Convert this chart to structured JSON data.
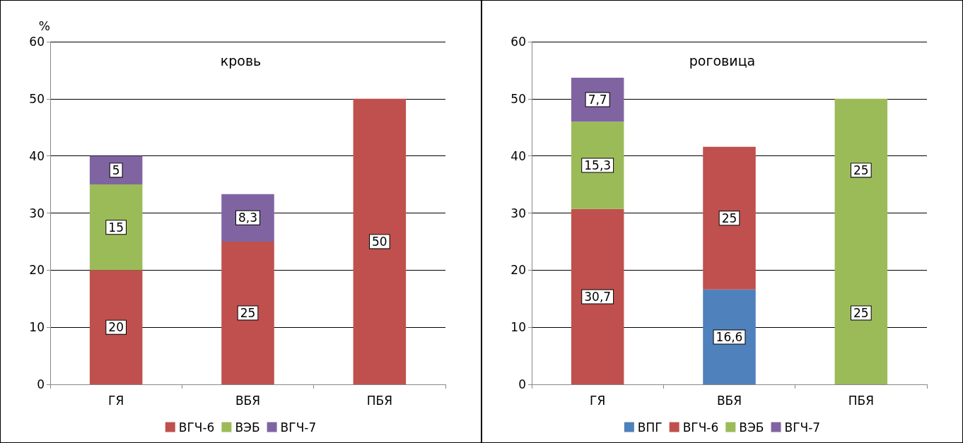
{
  "chart_data": [
    {
      "type": "bar",
      "title": "кровь",
      "ylabel": "%",
      "categories": [
        "ГЯ",
        "ВБЯ",
        "ПБЯ"
      ],
      "stacked": true,
      "ylim": [
        0,
        60
      ],
      "yticks": [
        0,
        10,
        20,
        30,
        40,
        50,
        60
      ],
      "grid": "y",
      "legend": "bottom",
      "series": [
        {
          "name": "ВГЧ-6",
          "color": "#c0504d",
          "values": [
            20,
            25,
            50
          ],
          "value_labels": [
            "20",
            "25",
            "50"
          ]
        },
        {
          "name": "ВЭБ",
          "color": "#9bbb59",
          "values": [
            15,
            null,
            null
          ],
          "value_labels": [
            "15",
            null,
            null
          ]
        },
        {
          "name": "ВГЧ-7",
          "color": "#8064a2",
          "values": [
            5,
            8.3,
            null
          ],
          "value_labels": [
            "5",
            "8,3",
            null
          ]
        }
      ]
    },
    {
      "type": "bar",
      "title": "роговица",
      "categories": [
        "ГЯ",
        "ВБЯ",
        "ПБЯ"
      ],
      "stacked": true,
      "ylim": [
        0,
        60
      ],
      "yticks": [
        0,
        10,
        20,
        30,
        40,
        50,
        60
      ],
      "grid": "y",
      "legend": "bottom",
      "series": [
        {
          "name": "ВПГ",
          "color": "#4f81bd",
          "values": [
            null,
            16.6,
            null
          ],
          "value_labels": [
            null,
            "16,6",
            null
          ]
        },
        {
          "name": "ВГЧ-6",
          "color": "#c0504d",
          "values": [
            30.7,
            25,
            null
          ],
          "value_labels": [
            "30,7",
            "25",
            null
          ]
        },
        {
          "name": "ВЭБ",
          "color": "#9bbb59",
          "values": [
            15.3,
            null,
            25
          ],
          "value_labels": [
            "15,3",
            null,
            "25"
          ]
        },
        {
          "color": "#9bbb59",
          "values": [
            null,
            null,
            25
          ],
          "value_labels": [
            null,
            null,
            "25"
          ]
        },
        {
          "name": "ВГЧ-7",
          "color": "#8064a2",
          "values": [
            7.7,
            null,
            null
          ],
          "value_labels": [
            "7,7",
            null,
            null
          ]
        }
      ]
    }
  ]
}
